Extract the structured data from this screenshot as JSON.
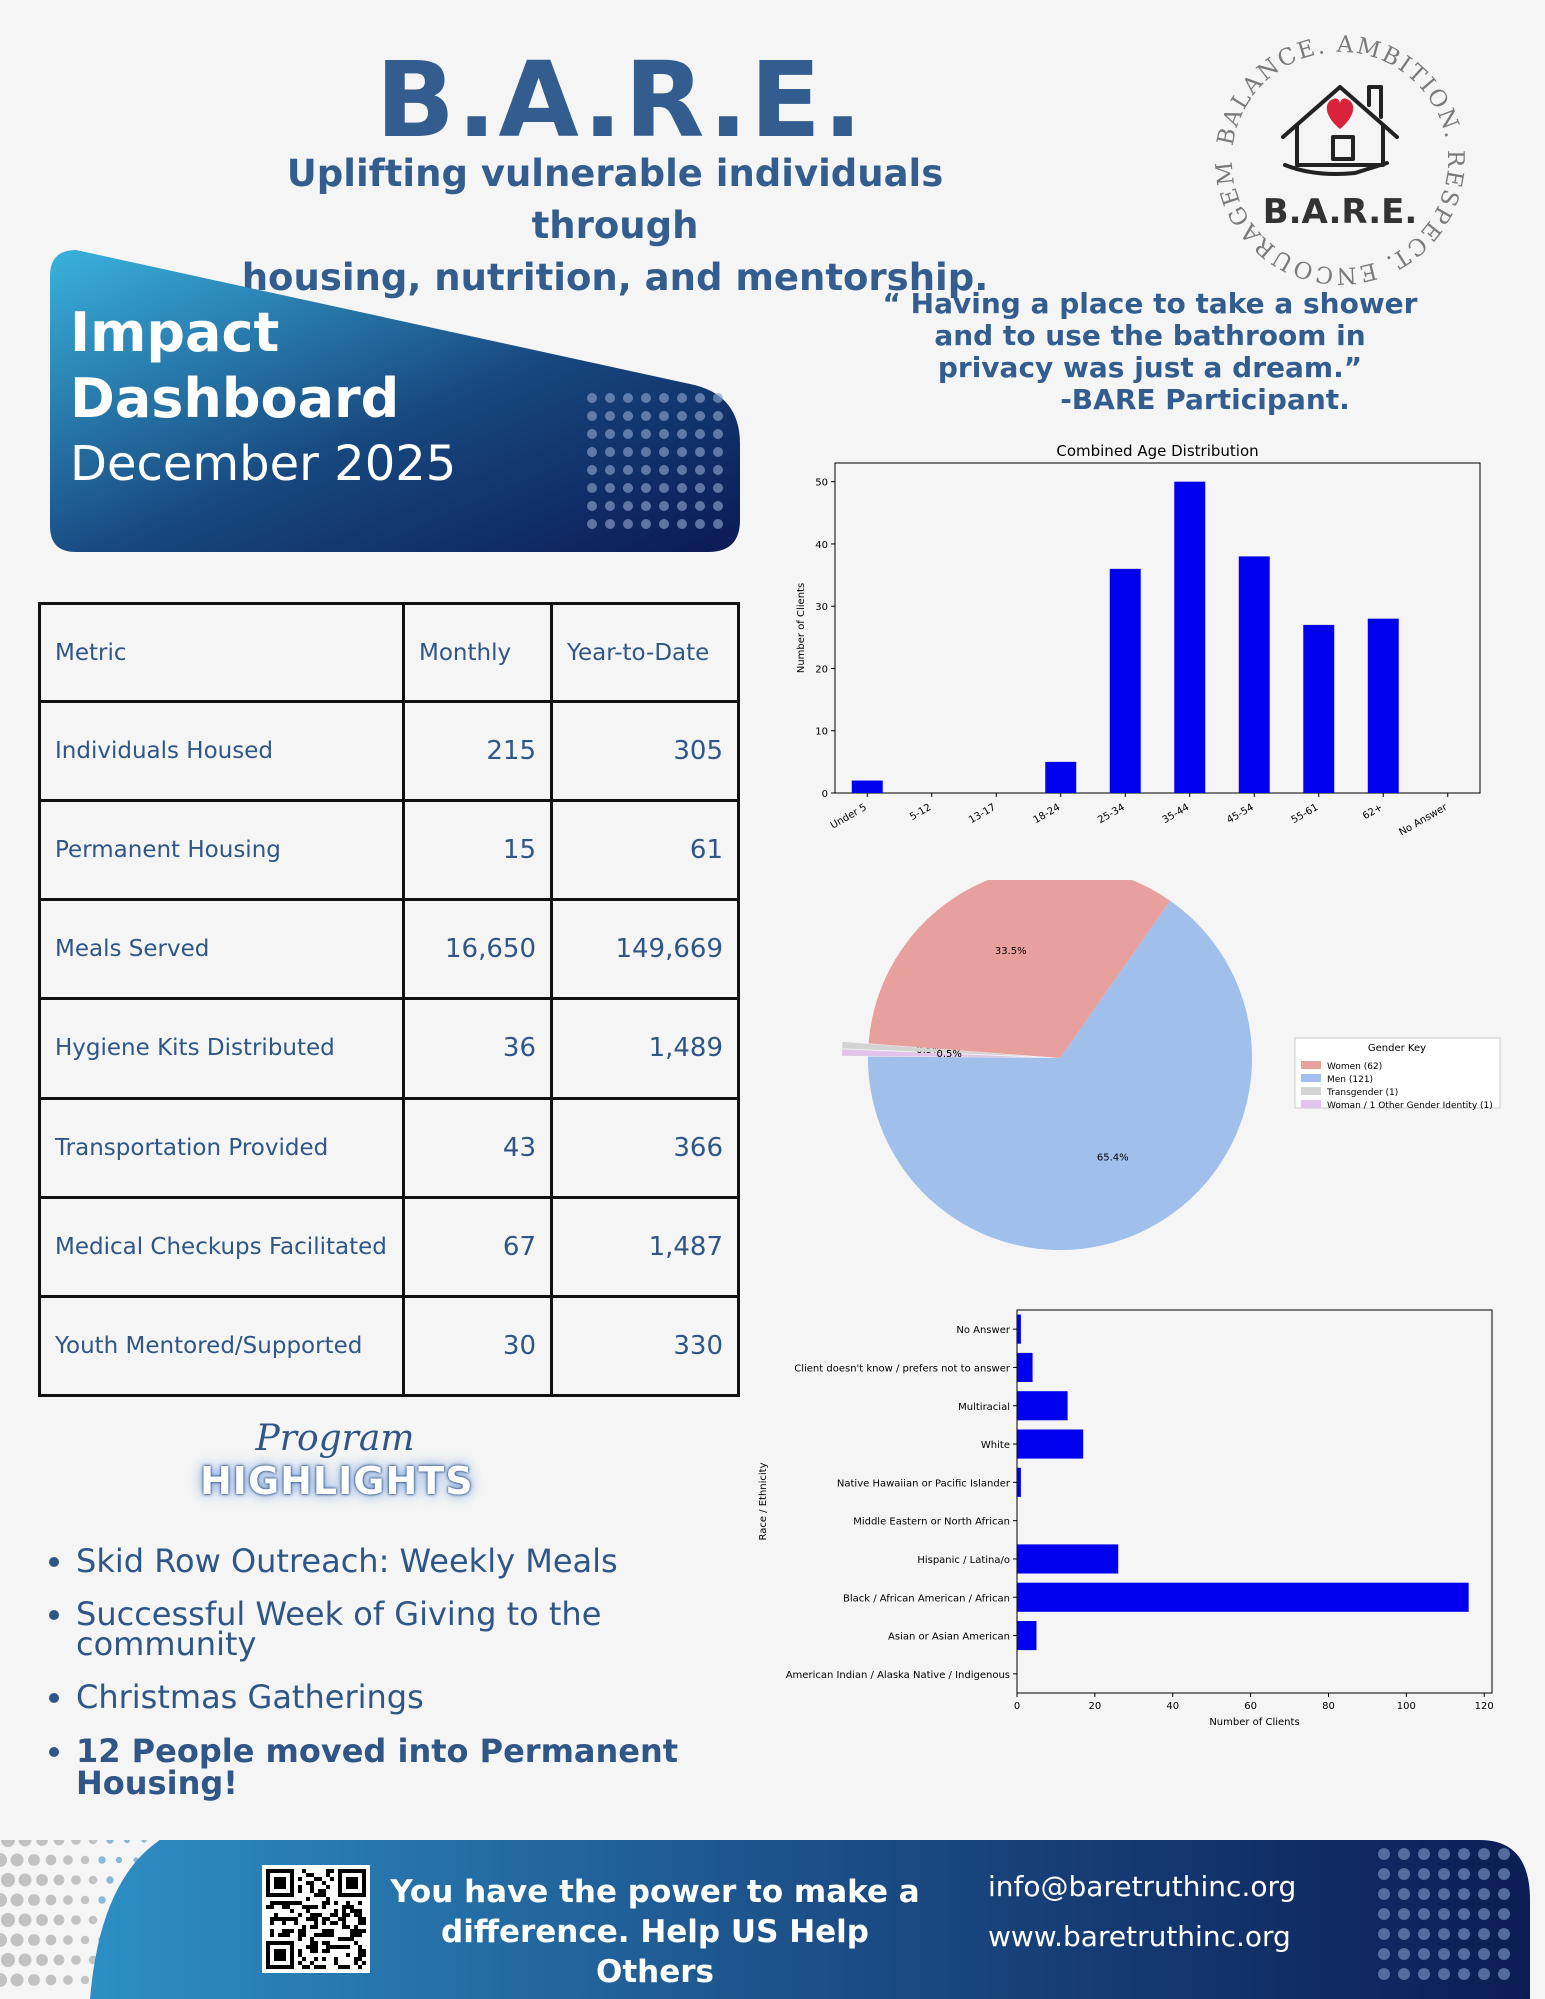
{
  "header": {
    "title": "B.A.R.E.",
    "tagline_line1": "Uplifting vulnerable individuals through",
    "tagline_line2": "housing, nutrition, and mentorship."
  },
  "logo": {
    "arc_text": "BALANCE. AMBITION. RESPECT. ENCOURAGEMENT.",
    "name": "B.A.R.E.",
    "icon": "house-heart-hand-icon"
  },
  "quote": {
    "line1": "“ Having a place to take a shower",
    "line2": "and to use the bathroom in",
    "line3": "privacy was just a dream.”",
    "attribution": "-BARE Participant."
  },
  "banner": {
    "line1": "Impact",
    "line2": "Dashboard",
    "line3": "December 2025"
  },
  "metrics_table": {
    "headers": [
      "Metric",
      "Monthly",
      "Year-to-Date"
    ],
    "rows": [
      {
        "metric": "Individuals Housed",
        "monthly": "215",
        "ytd": "305"
      },
      {
        "metric": "Permanent Housing",
        "monthly": "15",
        "ytd": "61"
      },
      {
        "metric": "Meals Served",
        "monthly": "16,650",
        "ytd": "149,669"
      },
      {
        "metric": "Hygiene Kits Distributed",
        "monthly": "36",
        "ytd": "1,489"
      },
      {
        "metric": "Transportation Provided",
        "monthly": "43",
        "ytd": "366"
      },
      {
        "metric": "Medical Checkups Facilitated",
        "monthly": "67",
        "ytd": "1,487"
      },
      {
        "metric": "Youth Mentored/Supported",
        "monthly": "30",
        "ytd": "330"
      }
    ]
  },
  "program": {
    "script": "Program",
    "highlights_title": "HIGHLIGHTS",
    "items": [
      "Skid Row Outreach: Weekly Meals",
      "Successful Week of Giving to the community",
      "Christmas Gatherings",
      "12 People moved into Permanent Housing!"
    ]
  },
  "footer": {
    "cta_line1": "You have the power to make a",
    "cta_line2": "difference. Help US Help Others",
    "email": "info@baretruthinc.org",
    "website": "www.baretruthinc.org",
    "qr_icon": "qr-code-icon"
  },
  "colors": {
    "navy_text": "#325d8e",
    "bar_blue": "#0000ee",
    "women": "#e8a09f",
    "men": "#a0bfea",
    "transgender": "#d3d3d3",
    "other": "#e2c3ea",
    "footer_left": "#2d8fc4",
    "footer_right": "#0c1d55"
  },
  "chart_data": [
    {
      "type": "bar",
      "title": "Combined Age Distribution",
      "xlabel": "",
      "ylabel": "Number of Clients",
      "categories": [
        "Under 5",
        "5-12",
        "13-17",
        "18-24",
        "25-34",
        "35-44",
        "45-54",
        "55-61",
        "62+",
        "No Answer"
      ],
      "values": [
        2,
        0,
        0,
        5,
        36,
        50,
        38,
        27,
        28,
        0
      ],
      "ylim": [
        0,
        53
      ],
      "yticks": [
        0,
        10,
        20,
        30,
        40,
        50
      ],
      "grid": false
    },
    {
      "type": "pie",
      "legend_title": "Gender Key",
      "legend_position": "right",
      "slices": [
        {
          "label": "Women (62)",
          "value": 62,
          "pct_label": "33.5%",
          "color": "#e8a09f"
        },
        {
          "label": "Men (121)",
          "value": 121,
          "pct_label": "65.4%",
          "color": "#a0bfea"
        },
        {
          "label": "Transgender (1)",
          "value": 1,
          "pct_label": "0.5%",
          "color": "#d3d3d3"
        },
        {
          "label": "Woman / 1 Other Gender Identity (1)",
          "value": 1,
          "pct_label": "0.5%",
          "color": "#e2c3ea"
        }
      ]
    },
    {
      "type": "bar",
      "orientation": "horizontal",
      "title": "",
      "xlabel": "Number of Clients",
      "ylabel": "Race / Ethnicity",
      "categories": [
        "No Answer",
        "Client doesn't know / prefers not to answer",
        "Multiracial",
        "White",
        "Native Hawaiian or Pacific Islander",
        "Middle Eastern or North African",
        "Hispanic / Latina/o",
        "Black / African American / African",
        "Asian or Asian American",
        "American Indian / Alaska Native / Indigenous"
      ],
      "values": [
        1,
        4,
        13,
        17,
        1,
        0,
        26,
        116,
        5,
        0
      ],
      "xlim": [
        0,
        122
      ],
      "xticks": [
        0,
        20,
        40,
        60,
        80,
        100,
        120
      ],
      "grid": false
    }
  ]
}
